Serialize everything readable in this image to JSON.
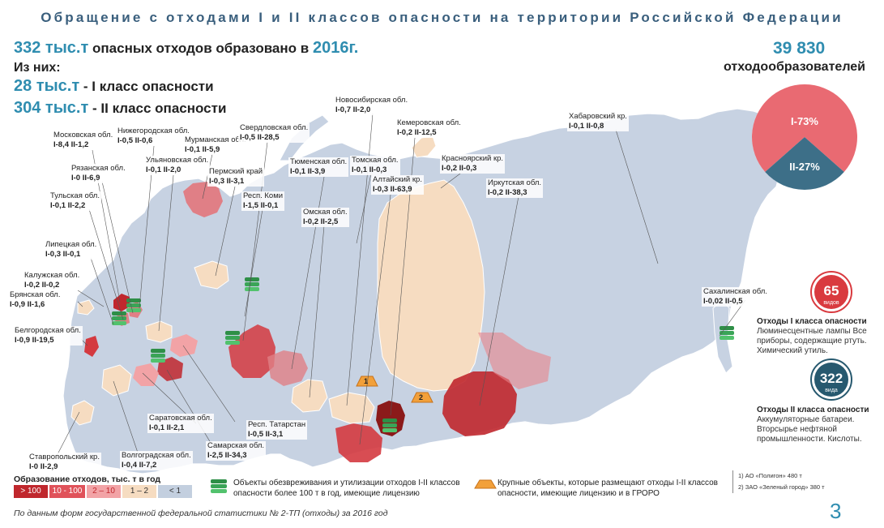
{
  "title": "Обращение с отходами I и II классов опасности на территории Российской Федерации",
  "summary": {
    "total_value": "332 тыс.т",
    "total_text": "опасных отходов образовано в",
    "year": "2016г.",
    "of_them": "Из них:",
    "class1_value": "28 тыс.т",
    "class1_text": "- I класс опасности",
    "class2_value": "304 тыс.т",
    "class2_text": "- II класс опасности"
  },
  "generators": {
    "count": "39 830",
    "label": "отходообразователей"
  },
  "pie": {
    "slice1_label": "I-73%",
    "slice2_label": "II-27%",
    "class1_share": 0.73,
    "class2_share": 0.27,
    "color1": "#e96a72",
    "color2": "#3d6f88"
  },
  "class_info": {
    "class1": {
      "count": "65",
      "unit": "видов",
      "title": "Отходы I класса опасности",
      "description": "Люминесцентные лампы Все приборы, содержащие ртуть. Химический утиль.",
      "color": "#d93a3f"
    },
    "class2": {
      "count": "322",
      "unit": "вида",
      "title": "Отходы II класса опасности",
      "description": "Аккумуляторные батареи. Вторсырье нефтяной промышленности. Кислоты.",
      "color": "#27596f"
    }
  },
  "regions": [
    {
      "name": "Московская обл.",
      "values": "I-8,4 II-1,2"
    },
    {
      "name": "Нижегородская обл.",
      "values": "I-0,5 II-0,6"
    },
    {
      "name": "Мурманская обл.",
      "values": "I-0,1 II-5,9"
    },
    {
      "name": "Свердловская обл.",
      "values": "I-0,5 II-28,5"
    },
    {
      "name": "Новосибирская обл.",
      "values": "I-0,7 II-2,0"
    },
    {
      "name": "Кемеровская обл.",
      "values": "I-0,2 II-12,5"
    },
    {
      "name": "Хабаровский кр.",
      "values": "I-0,1 II-0,8"
    },
    {
      "name": "Рязанская обл.",
      "values": "I-0 II-6,9"
    },
    {
      "name": "Ульяновская обл.",
      "values": "I-0,1 II-2,0"
    },
    {
      "name": "Пермский край",
      "values": "I-0,3 II-3,1"
    },
    {
      "name": "Тюменская обл.",
      "values": "I-0,1 II-3,9"
    },
    {
      "name": "Томская обл.",
      "values": "I-0,1 II-0,3"
    },
    {
      "name": "Красноярский кр.",
      "values": "I-0,2 II-0,3"
    },
    {
      "name": "Алтайский кр.",
      "values": "I-0,3 II-63,9"
    },
    {
      "name": "Иркутская обл.",
      "values": "I-0,2 II-38,3"
    },
    {
      "name": "Тульская обл.",
      "values": "I-0,1 II-2,2"
    },
    {
      "name": "Респ. Коми",
      "values": "I-1,5 II-0,1"
    },
    {
      "name": "Омская обл.",
      "values": "I-0,2 II-2,5"
    },
    {
      "name": "Липецкая обл.",
      "values": "I-0,3 II-0,1"
    },
    {
      "name": "Калужская обл.",
      "values": "I-0,2 II-0,2"
    },
    {
      "name": "Брянская обл.",
      "values": "I-0,9 II-1,6"
    },
    {
      "name": "Сахалинская обл.",
      "values": "I-0,02 II-0,5"
    },
    {
      "name": "Белгородская обл.",
      "values": "I-0,9 II-19,5"
    },
    {
      "name": "Саратовская обл.",
      "values": "I-0,1 II-2,1"
    },
    {
      "name": "Респ. Татарстан",
      "values": "I-0,5 II-3,1"
    },
    {
      "name": "Самарская обл.",
      "values": "I-2,5 II-34,3"
    },
    {
      "name": "Ставропольский кр.",
      "values": "I-0 II-2,9"
    },
    {
      "name": "Волгоградская обл.",
      "values": "I-0,4 II-7,2"
    }
  ],
  "legend": {
    "title": "Образование отходов, тыс. т в год",
    "items": [
      {
        "label": "> 100",
        "color": "#c0272d",
        "text_color": "#ffffff"
      },
      {
        "label": "10 - 100",
        "color": "#e0525a",
        "text_color": "#ffffff"
      },
      {
        "label": "2 – 10",
        "color": "#f2a3a6",
        "text_color": "#c0272d"
      },
      {
        "label": "1 – 2",
        "color": "#f6dcc1",
        "text_color": "#333333"
      },
      {
        "label": "< 1",
        "color": "#c3cfdf",
        "text_color": "#333333"
      }
    ],
    "facilities_text": "Объекты обезвреживания и утилизации отходов I-II классов опасности более 100 т в год, имеющие лицензию",
    "large_objects_text": "Крупные объекты, которые размещают отходы I-II классов опасности, имеющие лицензию и в ГРОРО",
    "notes": [
      "1) АО «Полигон» 480 т",
      "2) ЗАО «Зеленый город» 380 т"
    ],
    "marker1": "1",
    "marker2": "2"
  },
  "source": "По данным форм государственной федеральной статистики № 2-ТП (отходы) за 2016 год",
  "page_number": "3"
}
